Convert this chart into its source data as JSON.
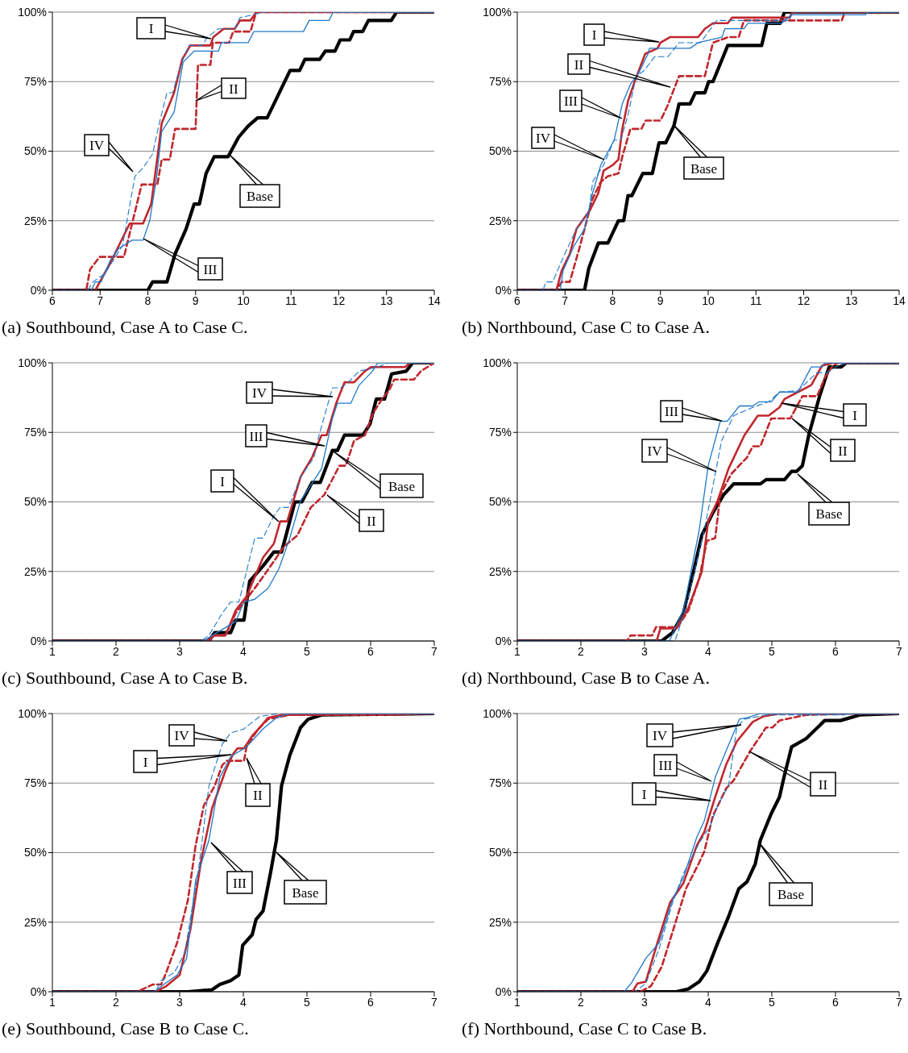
{
  "chart_data": [
    {
      "type": "line",
      "title": "(a) Southbound, Case A to Case C.",
      "xlim": [
        6,
        14
      ],
      "xticks": [
        6,
        7,
        8,
        9,
        10,
        11,
        12,
        13,
        14
      ],
      "ylim": [
        0,
        100
      ],
      "yticks": [
        {
          "value": 0,
          "label": "0%"
        },
        {
          "value": 25,
          "label": "25%"
        },
        {
          "value": 50,
          "label": "50%"
        },
        {
          "value": 75,
          "label": "75%"
        },
        {
          "value": 100,
          "label": "100%"
        }
      ],
      "grid": "y",
      "annotations": [
        "I",
        "II",
        "III",
        "IV",
        "Base"
      ],
      "series": [
        {
          "color": "#c0272d",
          "line_style": "solid",
          "x": [
            6,
            6.9,
            7.22,
            7.62,
            7.9,
            8.07,
            8.21,
            8.29,
            8.55,
            8.72,
            8.89,
            9.31,
            9.37,
            9.59,
            9.82,
            9.93,
            10.15,
            10.27,
            14
          ],
          "values": [
            0,
            0,
            10,
            24,
            24,
            31,
            49,
            60,
            71,
            83,
            88,
            88,
            91,
            94,
            94,
            97,
            97,
            100,
            100
          ]
        },
        {
          "color": "#c0272d",
          "line_style": "dashed",
          "x": [
            6,
            6.71,
            6.79,
            6.99,
            7.5,
            7.67,
            7.87,
            8.2,
            8.29,
            8.46,
            8.57,
            9.0,
            9.05,
            9.31,
            9.36,
            9.7,
            9.79,
            10.15,
            10.27,
            14
          ],
          "values": [
            0,
            0,
            7.5,
            12,
            12,
            24,
            38,
            38,
            47,
            47,
            58,
            58,
            81,
            81,
            89,
            89,
            93,
            93,
            100,
            100
          ]
        },
        {
          "color": "#1f78c8",
          "line_style": "solid",
          "x": [
            6,
            6.82,
            6.9,
            7.02,
            7.22,
            7.39,
            7.67,
            7.9,
            8.04,
            8.18,
            8.29,
            8.55,
            8.74,
            8.97,
            9.48,
            9.54,
            10.1,
            10.22,
            11.26,
            11.38,
            11.8,
            11.88,
            14
          ],
          "values": [
            0,
            0,
            3,
            3,
            11,
            15,
            18,
            18,
            25,
            40,
            57,
            64,
            82,
            86,
            86,
            89,
            89,
            93,
            93,
            97,
            97,
            100,
            100
          ]
        },
        {
          "color": "#1f78c8",
          "line_style": "dashed",
          "x": [
            6,
            6.74,
            6.85,
            7.1,
            7.47,
            7.73,
            7.9,
            8.1,
            8.24,
            8.4,
            8.52,
            8.69,
            8.86,
            9.14,
            9.25,
            9.48,
            9.82,
            9.93,
            10.45,
            14
          ],
          "values": [
            0,
            0,
            3,
            6,
            16,
            41,
            44,
            49,
            60,
            71,
            71,
            81,
            88,
            88,
            91,
            94,
            94,
            98,
            100,
            100
          ]
        },
        {
          "color": "#000000",
          "line_style": "solid",
          "x": [
            6,
            8.0,
            8.1,
            8.4,
            8.57,
            8.8,
            8.97,
            9.08,
            9.22,
            9.39,
            9.68,
            9.9,
            10.1,
            10.3,
            10.5,
            10.98,
            11.18,
            11.29,
            11.6,
            11.72,
            11.92,
            12.03,
            12.23,
            12.31,
            12.5,
            12.62,
            13.1,
            13.21,
            14
          ],
          "values": [
            0,
            0,
            3,
            3,
            13,
            22,
            31,
            31,
            42,
            48,
            48,
            55,
            59,
            62,
            62,
            79,
            79,
            83,
            83,
            86,
            86,
            90,
            90,
            93,
            93,
            97,
            97,
            100,
            100
          ]
        }
      ]
    },
    {
      "type": "line",
      "title": "(b) Northbound, Case C to Case A.",
      "xlim": [
        6,
        14
      ],
      "xticks": [
        6,
        7,
        8,
        9,
        10,
        11,
        12,
        13,
        14
      ],
      "ylim": [
        0,
        100
      ],
      "yticks": [
        {
          "value": 0,
          "label": "0%"
        },
        {
          "value": 25,
          "label": "25%"
        },
        {
          "value": 50,
          "label": "50%"
        },
        {
          "value": 75,
          "label": "75%"
        },
        {
          "value": 100,
          "label": "100%"
        }
      ],
      "grid": "y",
      "annotations": [
        "I",
        "II",
        "III",
        "IV",
        "Base"
      ],
      "series": [
        {
          "color": "#c0272d",
          "line_style": "solid",
          "x": [
            6,
            6.82,
            6.93,
            7.1,
            7.24,
            7.53,
            7.7,
            7.81,
            8.0,
            8.12,
            8.2,
            8.32,
            8.46,
            8.68,
            8.94,
            9.0,
            9.2,
            9.79,
            9.93,
            10.1,
            10.41,
            10.5,
            11.7,
            11.77,
            14
          ],
          "values": [
            0,
            0,
            7,
            13,
            22,
            29,
            35,
            43,
            45,
            47,
            58,
            68,
            75,
            85,
            87,
            89,
            91,
            91,
            94,
            96,
            96,
            98,
            98,
            100,
            100
          ]
        },
        {
          "color": "#c0272d",
          "line_style": "dashed",
          "x": [
            6,
            6.82,
            6.93,
            7.1,
            7.3,
            7.58,
            7.75,
            7.9,
            8.12,
            8.2,
            8.37,
            8.6,
            8.69,
            9.0,
            9.14,
            9.39,
            9.93,
            10.1,
            10.42,
            10.64,
            10.75,
            12.8,
            12.86,
            14
          ],
          "values": [
            0,
            0,
            3,
            3,
            15,
            33,
            39,
            41,
            42,
            48,
            58,
            58,
            61,
            61,
            66,
            77,
            77,
            89,
            91,
            91,
            97,
            97,
            100,
            100
          ]
        },
        {
          "color": "#1f78c8",
          "line_style": "solid",
          "x": [
            6,
            6.9,
            6.96,
            7.19,
            7.41,
            7.58,
            7.75,
            8.03,
            8.2,
            8.37,
            8.54,
            8.74,
            8.77,
            9.62,
            9.79,
            10.29,
            10.35,
            10.75,
            10.83,
            11.54,
            11.74,
            13.29,
            13.35,
            14
          ],
          "values": [
            0,
            0,
            7,
            16,
            22,
            35,
            45,
            54,
            67,
            74,
            78,
            85,
            87,
            87,
            89,
            91,
            94,
            94,
            96,
            96,
            99,
            99,
            100,
            100
          ]
        },
        {
          "color": "#1f78c8",
          "line_style": "dashed",
          "x": [
            6,
            6.54,
            6.6,
            6.74,
            7.02,
            7.24,
            7.5,
            7.58,
            7.81,
            8.03,
            8.17,
            8.32,
            8.49,
            8.66,
            8.88,
            9.16,
            9.39,
            9.84,
            10.18,
            11.7,
            11.77,
            14
          ],
          "values": [
            0,
            0,
            3,
            3,
            14,
            22,
            28,
            39,
            45,
            54,
            54,
            63,
            77,
            79,
            84,
            84,
            89,
            89,
            97,
            97,
            100,
            100
          ]
        },
        {
          "color": "#000000",
          "line_style": "solid",
          "x": [
            6,
            7.41,
            7.5,
            7.7,
            7.9,
            8.12,
            8.23,
            8.32,
            8.4,
            8.63,
            8.83,
            8.97,
            9.11,
            9.28,
            9.39,
            9.62,
            9.73,
            9.93,
            10.01,
            10.1,
            10.41,
            11.12,
            11.23,
            11.51,
            11.6,
            14
          ],
          "values": [
            0,
            0,
            8,
            17,
            17,
            25,
            25,
            34,
            34,
            42,
            42,
            53,
            53,
            59,
            67,
            67,
            71,
            71,
            75,
            75,
            88,
            88,
            96,
            96,
            100,
            100
          ]
        }
      ]
    },
    {
      "type": "line",
      "title": "(c) Southbound, Case A to Case B.",
      "xlim": [
        1,
        7
      ],
      "xticks": [
        1,
        2,
        3,
        4,
        5,
        6,
        7
      ],
      "ylim": [
        0,
        100
      ],
      "yticks": [
        {
          "value": 0,
          "label": "0%"
        },
        {
          "value": 25,
          "label": "25%"
        },
        {
          "value": 50,
          "label": "50%"
        },
        {
          "value": 75,
          "label": "75%"
        },
        {
          "value": 100,
          "label": "100%"
        }
      ],
      "grid": "y",
      "annotations": [
        "I",
        "II",
        "III",
        "IV",
        "Base"
      ],
      "series": [
        {
          "color": "#c0272d",
          "line_style": "solid",
          "x": [
            1,
            3.46,
            3.53,
            3.72,
            3.88,
            4.05,
            4.31,
            4.48,
            4.58,
            4.69,
            4.9,
            5.08,
            5.23,
            5.31,
            5.46,
            5.59,
            5.74,
            5.91,
            6.01,
            6.54,
            6.62,
            7
          ],
          "values": [
            0,
            0,
            2,
            2,
            11,
            16,
            30,
            35,
            43,
            43,
            59,
            66,
            74,
            74,
            85.5,
            93,
            93,
            97,
            98.5,
            98.5,
            100,
            100
          ]
        },
        {
          "color": "#c0272d",
          "line_style": "dashed",
          "x": [
            1,
            3.42,
            3.55,
            3.72,
            3.88,
            4.05,
            4.26,
            4.43,
            4.64,
            4.85,
            5.06,
            5.27,
            5.51,
            5.61,
            5.74,
            5.91,
            6.04,
            6.18,
            6.29,
            6.37,
            6.68,
            6.79,
            7
          ],
          "values": [
            0,
            0,
            2,
            2,
            10,
            15,
            21.5,
            27,
            34,
            38,
            48,
            52.5,
            63,
            63,
            72,
            74,
            82,
            87,
            90,
            94,
            94,
            97,
            100
          ]
        },
        {
          "color": "#1f78c8",
          "line_style": "solid",
          "x": [
            1,
            3.38,
            3.51,
            3.88,
            4.01,
            4.18,
            4.39,
            4.56,
            4.73,
            4.9,
            5.06,
            5.23,
            5.4,
            5.48,
            5.69,
            5.82,
            6.03,
            6.11,
            7
          ],
          "values": [
            0,
            0,
            2,
            7,
            14,
            15,
            19,
            26,
            37,
            50.5,
            56,
            62,
            80,
            85.5,
            85.5,
            92,
            97,
            100,
            100
          ]
        },
        {
          "color": "#1f78c8",
          "line_style": "dashed",
          "x": [
            1,
            3.34,
            3.46,
            3.67,
            3.8,
            3.93,
            4.18,
            4.31,
            4.48,
            4.58,
            4.71,
            4.9,
            5.11,
            5.19,
            5.4,
            5.53,
            5.65,
            5.82,
            6.11,
            6.28,
            7
          ],
          "values": [
            0,
            0,
            2,
            10,
            14,
            14,
            37,
            37,
            45,
            48,
            48,
            59,
            66,
            74,
            91,
            91,
            93,
            97,
            98.5,
            100,
            100
          ]
        },
        {
          "color": "#000000",
          "line_style": "solid",
          "x": [
            1,
            3.46,
            3.55,
            3.8,
            3.88,
            4.01,
            4.1,
            4.31,
            4.48,
            4.6,
            4.66,
            4.81,
            4.92,
            5.08,
            5.21,
            5.4,
            5.48,
            5.59,
            5.88,
            5.99,
            6.09,
            6.22,
            6.33,
            6.56,
            6.66,
            7
          ],
          "values": [
            0,
            0,
            3,
            3,
            7.5,
            7.5,
            21.5,
            27,
            32,
            32,
            37,
            50,
            50,
            57,
            57,
            68.5,
            68.5,
            74,
            74,
            78,
            87,
            87,
            96,
            97,
            100,
            100
          ]
        }
      ]
    },
    {
      "type": "line",
      "title": "(d) Northbound, Case B to Case A.",
      "xlim": [
        1,
        7
      ],
      "xticks": [
        1,
        2,
        3,
        4,
        5,
        6,
        7
      ],
      "ylim": [
        0,
        100
      ],
      "yticks": [
        {
          "value": 0,
          "label": "0%"
        },
        {
          "value": 25,
          "label": "25%"
        },
        {
          "value": 50,
          "label": "50%"
        },
        {
          "value": 75,
          "label": "75%"
        },
        {
          "value": 100,
          "label": "100%"
        }
      ],
      "grid": "y",
      "annotations": [
        "I",
        "II",
        "III",
        "IV",
        "Base"
      ],
      "series": [
        {
          "color": "#c0272d",
          "line_style": "solid",
          "x": [
            1,
            3.19,
            3.25,
            3.5,
            3.69,
            3.9,
            4.0,
            4.15,
            4.32,
            4.57,
            4.78,
            4.95,
            5.12,
            5.2,
            5.41,
            5.62,
            5.79,
            5.96,
            7
          ],
          "values": [
            0,
            0,
            4.5,
            4.5,
            12,
            25,
            43,
            50.5,
            62,
            74,
            81,
            81,
            84,
            87,
            89.5,
            92,
            99,
            100,
            100
          ]
        },
        {
          "color": "#c0272d",
          "line_style": "dashed",
          "x": [
            1,
            2.72,
            2.78,
            3.12,
            3.18,
            3.52,
            3.69,
            3.86,
            3.98,
            4.11,
            4.19,
            4.36,
            4.61,
            4.7,
            4.82,
            4.99,
            5.29,
            5.48,
            5.71,
            5.84,
            5.96,
            6.04,
            7
          ],
          "values": [
            0,
            0,
            2,
            2,
            5,
            5,
            11,
            22.5,
            36,
            37,
            52.5,
            60,
            66,
            70,
            70,
            80,
            80,
            88,
            88,
            95,
            99,
            100,
            100
          ]
        },
        {
          "color": "#1f78c8",
          "line_style": "solid",
          "x": [
            1,
            3.39,
            3.61,
            3.86,
            4.0,
            4.19,
            4.3,
            4.49,
            4.7,
            4.8,
            4.99,
            5.12,
            5.41,
            5.62,
            5.79,
            5.83,
            7
          ],
          "values": [
            0,
            0,
            11,
            40,
            63,
            79,
            79,
            84.5,
            84.5,
            86,
            86,
            89.5,
            89.5,
            98.5,
            98.5,
            100,
            100
          ]
        },
        {
          "color": "#1f78c8",
          "line_style": "dashed",
          "x": [
            1,
            3.48,
            3.65,
            3.94,
            4.11,
            4.21,
            4.4,
            4.7,
            4.95,
            5.12,
            5.41,
            5.71,
            5.87,
            6.04,
            6.17,
            7
          ],
          "values": [
            0,
            0,
            12,
            40,
            60,
            72,
            81,
            84,
            86,
            89.5,
            90,
            96.5,
            96.5,
            99,
            100,
            100
          ]
        },
        {
          "color": "#000000",
          "line_style": "solid",
          "x": [
            1,
            3.27,
            3.44,
            3.61,
            3.77,
            3.9,
            4.07,
            4.24,
            4.4,
            4.82,
            4.91,
            5.2,
            5.31,
            5.39,
            5.48,
            5.58,
            5.75,
            5.9,
            6.09,
            6.17,
            7
          ],
          "values": [
            0,
            0,
            3,
            10,
            25,
            38,
            46,
            52.5,
            56.5,
            56.5,
            58,
            58,
            61,
            61,
            63,
            74,
            88,
            98.5,
            98.5,
            100,
            100
          ]
        }
      ]
    },
    {
      "type": "line",
      "title": "(e) Southbound, Case B to Case C.",
      "xlim": [
        1,
        7
      ],
      "xticks": [
        1,
        2,
        3,
        4,
        5,
        6,
        7
      ],
      "ylim": [
        0,
        100
      ],
      "yticks": [
        {
          "value": 0,
          "label": "0%"
        },
        {
          "value": 25,
          "label": "25%"
        },
        {
          "value": 50,
          "label": "50%"
        },
        {
          "value": 75,
          "label": "75%"
        },
        {
          "value": 100,
          "label": "100%"
        }
      ],
      "grid": "y",
      "annotations": [
        "I",
        "II",
        "III",
        "IV",
        "Base"
      ],
      "series": [
        {
          "color": "#c0272d",
          "line_style": "solid",
          "x": [
            1,
            2.62,
            2.79,
            3.0,
            3.17,
            3.34,
            3.51,
            3.72,
            3.84,
            3.91,
            4.01,
            4.14,
            4.26,
            4.39,
            4.6,
            7
          ],
          "values": [
            0,
            0,
            2,
            6,
            22.5,
            47.5,
            66,
            79.5,
            85.5,
            87.5,
            87.5,
            92,
            95,
            98.5,
            99.5,
            100
          ]
        },
        {
          "color": "#c0272d",
          "line_style": "dashed",
          "x": [
            1,
            2.33,
            2.58,
            2.71,
            2.79,
            2.96,
            3.13,
            3.25,
            3.38,
            3.55,
            3.67,
            3.74,
            4.01,
            4.05,
            4.22,
            4.39,
            4.73,
            6.33,
            6.75,
            7
          ],
          "values": [
            0,
            0,
            2.6,
            2.6,
            7,
            17.6,
            33,
            52.5,
            67,
            74,
            81.5,
            83,
            83,
            88,
            94,
            98,
            99.5,
            99.5,
            100,
            100
          ]
        },
        {
          "color": "#1f78c8",
          "line_style": "solid",
          "x": [
            1,
            2.6,
            2.75,
            2.96,
            3.11,
            3.25,
            3.46,
            3.63,
            3.8,
            4.05,
            4.31,
            4.52,
            4.73,
            7
          ],
          "values": [
            0,
            0,
            2.6,
            6,
            12,
            40,
            54.5,
            77,
            84.5,
            88,
            94.5,
            98.5,
            100,
            100
          ]
        },
        {
          "color": "#1f78c8",
          "line_style": "dashed",
          "x": [
            1,
            2.62,
            2.71,
            2.92,
            3.08,
            3.29,
            3.46,
            3.67,
            3.8,
            4.01,
            4.26,
            4.56,
            7
          ],
          "values": [
            0,
            0,
            4,
            7,
            14,
            43,
            74,
            89,
            93,
            94.5,
            99,
            100,
            100
          ]
        },
        {
          "color": "#000000",
          "line_style": "solid",
          "x": [
            1,
            3.13,
            3.51,
            3.63,
            3.8,
            3.93,
            3.99,
            4.14,
            4.2,
            4.31,
            4.43,
            4.52,
            4.6,
            4.73,
            4.9,
            5.02,
            5.23,
            7
          ],
          "values": [
            0,
            0,
            0.7,
            2.6,
            4,
            6,
            16.7,
            20.5,
            26,
            29,
            43,
            54.5,
            74,
            85,
            95,
            98,
            99.5,
            100
          ]
        }
      ]
    },
    {
      "type": "line",
      "title": "(f) Northbound, Case C to Case B.",
      "xlim": [
        1,
        7
      ],
      "xticks": [
        1,
        2,
        3,
        4,
        5,
        6,
        7
      ],
      "ylim": [
        0,
        100
      ],
      "yticks": [
        {
          "value": 0,
          "label": "0%"
        },
        {
          "value": 25,
          "label": "25%"
        },
        {
          "value": 50,
          "label": "50%"
        },
        {
          "value": 75,
          "label": "75%"
        },
        {
          "value": 100,
          "label": "100%"
        }
      ],
      "grid": "y",
      "annotations": [
        "I",
        "II",
        "III",
        "IV",
        "Base"
      ],
      "series": [
        {
          "color": "#c0272d",
          "line_style": "solid",
          "x": [
            1,
            2.81,
            2.89,
            3.02,
            3.19,
            3.4,
            3.61,
            3.82,
            3.94,
            4.11,
            4.28,
            4.45,
            4.7,
            4.87,
            5.12,
            7
          ],
          "values": [
            0,
            0,
            3,
            3.6,
            16.7,
            32,
            39,
            52.5,
            57.5,
            70,
            81.5,
            90,
            97,
            99,
            100,
            100
          ]
        },
        {
          "color": "#c0272d",
          "line_style": "dashed",
          "x": [
            1,
            2.93,
            3.1,
            3.27,
            3.44,
            3.65,
            3.86,
            3.94,
            4.07,
            4.28,
            4.4,
            4.66,
            4.91,
            5.01,
            5.12,
            5.54,
            6.17,
            7
          ],
          "values": [
            0,
            0,
            2,
            9,
            21.5,
            37,
            46.5,
            50.5,
            63,
            73,
            76,
            86.5,
            95,
            95,
            97.5,
            99.5,
            100,
            100
          ]
        },
        {
          "color": "#1f78c8",
          "line_style": "solid",
          "x": [
            1,
            2.68,
            2.79,
            3.02,
            3.23,
            3.44,
            3.61,
            3.82,
            3.94,
            4.11,
            4.28,
            4.49,
            4.61,
            4.82,
            7
          ],
          "values": [
            0,
            0,
            3,
            12,
            17.6,
            33,
            41,
            55.5,
            61.5,
            77,
            86.5,
            98,
            98.5,
            100,
            100
          ]
        },
        {
          "color": "#1f78c8",
          "line_style": "dashed",
          "x": [
            1,
            2.85,
            3.02,
            3.23,
            3.44,
            3.61,
            3.86,
            4.03,
            4.15,
            4.32,
            4.45,
            4.57,
            4.91,
            6.13,
            6.21,
            7
          ],
          "values": [
            0,
            0,
            3,
            15.5,
            32,
            42.5,
            53.5,
            59.5,
            67,
            74,
            95,
            98,
            99.5,
            99.5,
            100,
            100
          ]
        },
        {
          "color": "#000000",
          "line_style": "solid",
          "x": [
            1,
            3.5,
            3.69,
            3.86,
            3.98,
            4.15,
            4.32,
            4.48,
            4.61,
            4.74,
            4.82,
            4.99,
            5.12,
            5.2,
            5.31,
            5.54,
            5.83,
            6.08,
            6.38,
            7
          ],
          "values": [
            0,
            0,
            1,
            3.6,
            7.5,
            17.6,
            27,
            37,
            39.5,
            46,
            54.5,
            64,
            70,
            78,
            88,
            91,
            97.5,
            97.5,
            99.5,
            100
          ]
        }
      ]
    }
  ]
}
